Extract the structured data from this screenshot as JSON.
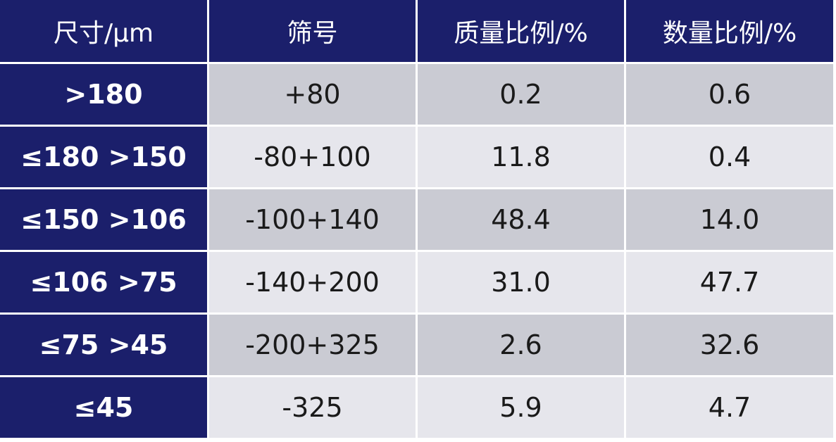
{
  "table": {
    "header": [
      "尺寸/μm",
      "筛号",
      "质量比例/%",
      "数量比例/%"
    ],
    "rows": [
      [
        ">180",
        "+80",
        "0.2",
        "0.6"
      ],
      [
        "≤180 >150",
        "-80+100",
        "11.8",
        "0.4"
      ],
      [
        "≤150 >106",
        "-100+140",
        "48.4",
        "14.0"
      ],
      [
        "≤106 >75",
        "-140+200",
        "31.0",
        "47.7"
      ],
      [
        "≤75 >45",
        "-200+325",
        "2.6",
        "32.6"
      ],
      [
        "≤45",
        "-325",
        "5.9",
        "4.7"
      ]
    ]
  }
}
